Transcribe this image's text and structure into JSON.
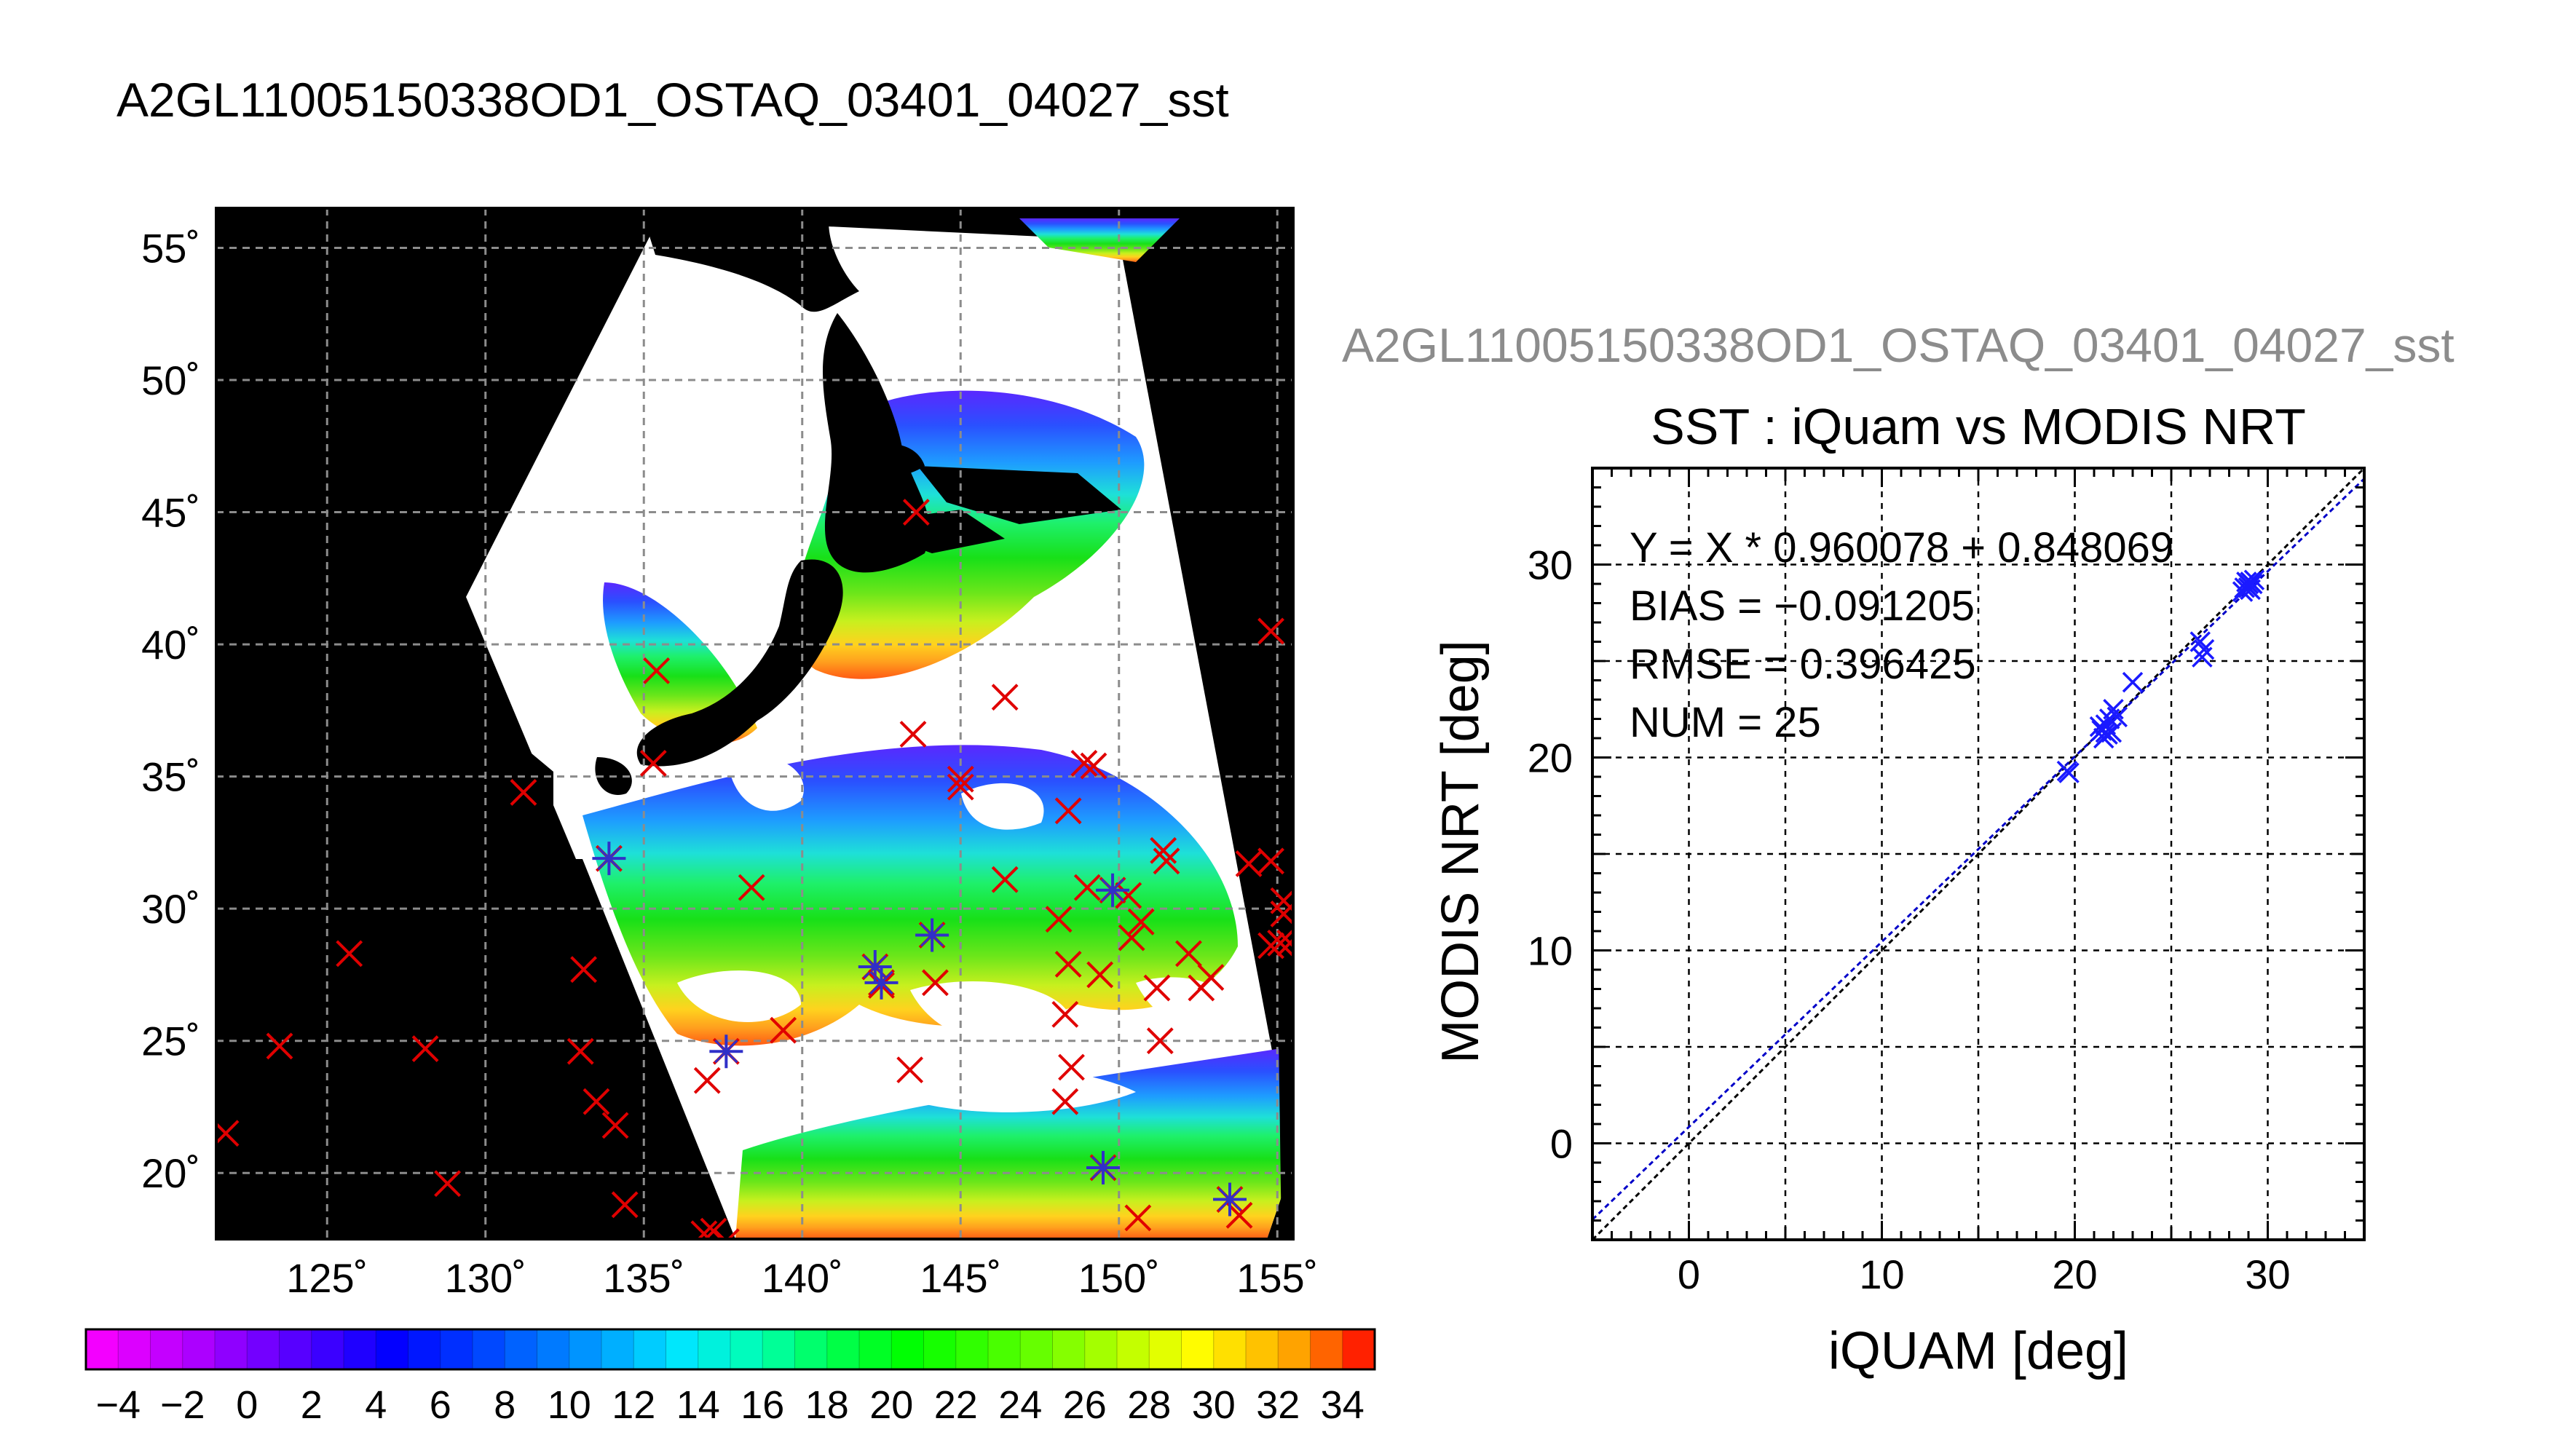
{
  "page": {
    "title": "A2GL11005150338OD1_OSTAQ_03401_04027_sst"
  },
  "chart_data": [
    {
      "type": "map",
      "title": "A2GL11005150338OD1_OSTAQ_03401_04027_sst",
      "lon_range": [
        121.5,
        155.5
      ],
      "lat_range": [
        17.5,
        56.5
      ],
      "x_tick_labels": [
        "125˚",
        "130˚",
        "135˚",
        "140˚",
        "145˚",
        "150˚",
        "155˚"
      ],
      "y_tick_labels": [
        "20˚",
        "25˚",
        "30˚",
        "35˚",
        "40˚",
        "45˚",
        "50˚",
        "55˚"
      ],
      "grid": true,
      "colorbar": {
        "range": [
          -5,
          35
        ],
        "step": 1,
        "tick_labels": [
          "−4",
          "−2",
          "0",
          "2",
          "4",
          "6",
          "8",
          "10",
          "12",
          "14",
          "16",
          "18",
          "20",
          "22",
          "24",
          "26",
          "28",
          "30",
          "32",
          "34"
        ]
      },
      "markers_red_x": [
        [
          121.8,
          21.5
        ],
        [
          123.5,
          24.8
        ],
        [
          125.7,
          28.3
        ],
        [
          128.1,
          24.7
        ],
        [
          128.8,
          19.6
        ],
        [
          131.2,
          34.4
        ],
        [
          133.1,
          27.7
        ],
        [
          133.0,
          24.6
        ],
        [
          133.5,
          22.7
        ],
        [
          134.1,
          21.8
        ],
        [
          134.4,
          18.8
        ],
        [
          135.3,
          35.5
        ],
        [
          135.4,
          39.0
        ],
        [
          136.9,
          17.7
        ],
        [
          137.2,
          17.8
        ],
        [
          137.0,
          23.5
        ],
        [
          137.6,
          17.4
        ],
        [
          138.4,
          30.8
        ],
        [
          139.4,
          25.4
        ],
        [
          142.5,
          27.1
        ],
        [
          143.4,
          23.9
        ],
        [
          143.5,
          36.6
        ],
        [
          144.2,
          27.2
        ],
        [
          145.0,
          34.9
        ],
        [
          145.0,
          34.6
        ],
        [
          146.4,
          38.0
        ],
        [
          146.4,
          31.1
        ],
        [
          148.1,
          29.6
        ],
        [
          148.4,
          33.7
        ],
        [
          148.4,
          27.9
        ],
        [
          148.3,
          26.0
        ],
        [
          148.5,
          24.0
        ],
        [
          148.3,
          22.7
        ],
        [
          148.9,
          35.5
        ],
        [
          149.2,
          35.4
        ],
        [
          149.0,
          30.8
        ],
        [
          149.4,
          27.5
        ],
        [
          150.3,
          30.5
        ],
        [
          150.4,
          28.9
        ],
        [
          150.7,
          29.5
        ],
        [
          150.6,
          18.3
        ],
        [
          151.2,
          27.0
        ],
        [
          151.3,
          25.0
        ],
        [
          151.4,
          32.2
        ],
        [
          151.5,
          31.8
        ],
        [
          152.2,
          28.3
        ],
        [
          152.6,
          27.0
        ],
        [
          152.9,
          27.4
        ],
        [
          153.8,
          18.4
        ],
        [
          154.1,
          31.7
        ],
        [
          154.8,
          31.8
        ],
        [
          154.8,
          28.6
        ],
        [
          155.1,
          28.7
        ],
        [
          155.2,
          30.3
        ],
        [
          155.2,
          29.8
        ],
        [
          155.4,
          28.7
        ],
        [
          154.8,
          40.5
        ],
        [
          143.6,
          45.0
        ]
      ],
      "markers_blue_star": [
        [
          133.9,
          31.9
        ],
        [
          137.6,
          24.6
        ],
        [
          142.3,
          27.8
        ],
        [
          142.5,
          27.2
        ],
        [
          144.1,
          29.0
        ],
        [
          149.5,
          20.2
        ],
        [
          149.8,
          30.7
        ],
        [
          153.5,
          19.0
        ]
      ]
    },
    {
      "type": "scatter",
      "title": "SST : iQuam vs MODIS NRT",
      "header": "A2GL11005150338OD1_OSTAQ_03401_04027_sst",
      "xlabel": "iQUAM [deg]",
      "ylabel": "MODIS NRT [deg]",
      "xlim": [
        -5,
        35
      ],
      "ylim": [
        -5,
        35
      ],
      "x_tick_labels": [
        "0",
        "10",
        "20",
        "30"
      ],
      "y_tick_labels": [
        "0",
        "10",
        "20",
        "30"
      ],
      "grid": true,
      "stats": [
        "Y = X * 0.960078 + 0.848069",
        "BIAS = −0.091205",
        "RMSE = 0.396425",
        "NUM = 25"
      ],
      "fit": {
        "slope": 0.960078,
        "intercept": 0.848069
      },
      "points": [
        [
          19.6,
          19.3
        ],
        [
          19.7,
          19.2
        ],
        [
          21.3,
          21.6
        ],
        [
          21.4,
          21.4
        ],
        [
          21.5,
          21.0
        ],
        [
          21.6,
          21.3
        ],
        [
          21.6,
          21.7
        ],
        [
          21.7,
          21.2
        ],
        [
          21.9,
          21.3
        ],
        [
          21.8,
          22.0
        ],
        [
          22.0,
          22.5
        ],
        [
          22.2,
          22.1
        ],
        [
          23.0,
          23.9
        ],
        [
          26.5,
          26.0
        ],
        [
          26.6,
          25.2
        ],
        [
          26.7,
          25.6
        ],
        [
          28.7,
          28.6
        ],
        [
          28.8,
          28.8
        ],
        [
          29.0,
          29.0
        ],
        [
          29.0,
          28.8
        ],
        [
          29.1,
          29.1
        ],
        [
          29.2,
          29.0
        ],
        [
          29.3,
          29.2
        ],
        [
          28.9,
          29.1
        ],
        [
          29.1,
          28.7
        ]
      ]
    }
  ]
}
